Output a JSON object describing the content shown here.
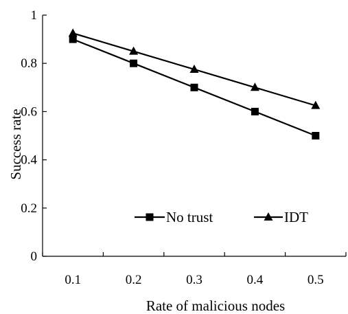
{
  "chart_data": {
    "type": "line",
    "title": "",
    "xlabel": "Rate of malicious nodes",
    "ylabel": "Success rate",
    "categories": [
      "0.1",
      "0.2",
      "0.3",
      "0.4",
      "0.5"
    ],
    "x": [
      0.1,
      0.2,
      0.3,
      0.4,
      0.5
    ],
    "xlim": [
      0.05,
      0.55
    ],
    "ylim": [
      0,
      1
    ],
    "yticks": [
      "0",
      "0.2",
      "0.4",
      "0.6",
      "0.8",
      "1"
    ],
    "grid": false,
    "legend_position": "bottom-right",
    "series": [
      {
        "name": "No trust",
        "marker": "square",
        "color": "#000000",
        "values": [
          0.9,
          0.8,
          0.7,
          0.6,
          0.5
        ]
      },
      {
        "name": "IDT",
        "marker": "triangle",
        "color": "#000000",
        "values": [
          0.925,
          0.85,
          0.775,
          0.7,
          0.625
        ]
      }
    ]
  }
}
